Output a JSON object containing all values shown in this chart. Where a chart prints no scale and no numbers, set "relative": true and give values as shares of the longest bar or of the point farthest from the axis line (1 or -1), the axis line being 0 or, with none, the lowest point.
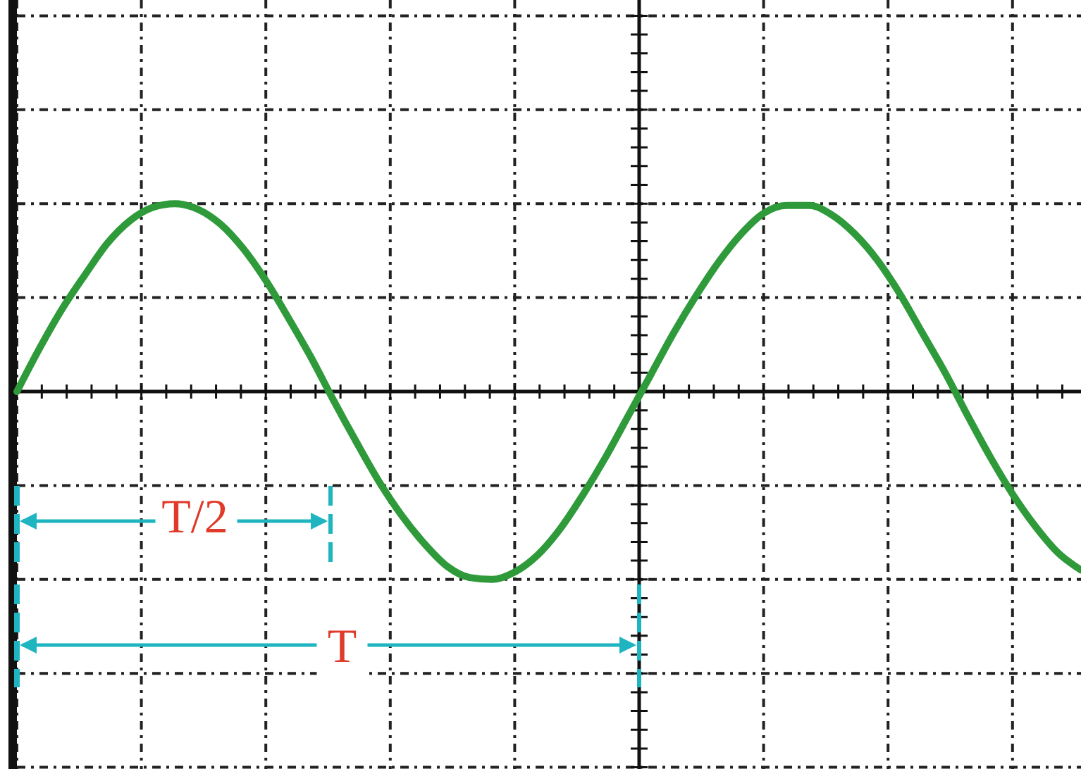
{
  "chart_data": {
    "type": "line",
    "relative": true,
    "grid": true,
    "marker": "none",
    "line_style": "solid",
    "categories": [
      null,
      null,
      null,
      null,
      null,
      null,
      null,
      null,
      null,
      null,
      null,
      null,
      null,
      null,
      null,
      null,
      null,
      null,
      null,
      null,
      null,
      null,
      null,
      null,
      null,
      null,
      null,
      null,
      null,
      null,
      null,
      null,
      null,
      null,
      null,
      null,
      null,
      null,
      null,
      null,
      null,
      null,
      null,
      null,
      null,
      null,
      null,
      null
    ],
    "series": [
      {
        "color": "#2e9a3a",
        "values": [
          0,
          0.23,
          0.44,
          0.62,
          0.79,
          0.91,
          0.98,
          1,
          0.97,
          0.89,
          0.76,
          0.59,
          0.39,
          0.18,
          -0.05,
          -0.27,
          -0.48,
          -0.66,
          -0.81,
          -0.93,
          -0.99,
          -1,
          -0.96,
          -0.87,
          -0.73,
          -0.55,
          -0.35,
          -0.13,
          0.09,
          0.31,
          0.51,
          0.69,
          0.84,
          0.95,
          0.99,
          0.99,
          0.94,
          0.84,
          0.7,
          0.52,
          0.31,
          0.1,
          -0.13,
          -0.35,
          -0.55,
          -0.72,
          -0.86,
          -0.95
        ]
      }
    ],
    "annotations": [
      "T/2",
      "T"
    ]
  }
}
